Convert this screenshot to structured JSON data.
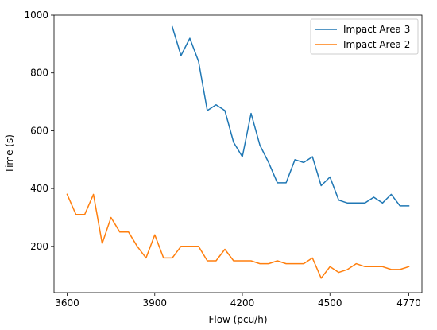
{
  "chart_data": {
    "type": "line",
    "title": "",
    "xlabel": "Flow (pcu/h)",
    "ylabel": "Time (s)",
    "xlim": [
      3555,
      4815
    ],
    "ylim": [
      40,
      1000
    ],
    "xticks": [
      3600,
      3900,
      4200,
      4500,
      4770
    ],
    "yticks": [
      200,
      400,
      600,
      800,
      1000
    ],
    "grid": false,
    "legend": "top-right",
    "series": [
      {
        "name": "Impact Area 3",
        "color": "#1f77b4",
        "x": [
          3960,
          3990,
          4020,
          4050,
          4080,
          4110,
          4140,
          4170,
          4200,
          4230,
          4260,
          4290,
          4320,
          4350,
          4380,
          4410,
          4440,
          4470,
          4500,
          4530,
          4560,
          4590,
          4620,
          4650,
          4680,
          4710,
          4740,
          4770
        ],
        "y": [
          960,
          860,
          920,
          840,
          670,
          690,
          670,
          560,
          510,
          660,
          550,
          490,
          420,
          420,
          500,
          490,
          510,
          410,
          440,
          360,
          350,
          350,
          350,
          370,
          350,
          380,
          340,
          340
        ]
      },
      {
        "name": "Impact Area 2",
        "color": "#ff7f0e",
        "x": [
          3600,
          3630,
          3660,
          3690,
          3720,
          3750,
          3780,
          3810,
          3840,
          3870,
          3900,
          3930,
          3960,
          3990,
          4020,
          4050,
          4080,
          4110,
          4140,
          4170,
          4200,
          4230,
          4260,
          4290,
          4320,
          4350,
          4380,
          4410,
          4440,
          4470,
          4500,
          4530,
          4560,
          4590,
          4620,
          4650,
          4680,
          4710,
          4740,
          4770
        ],
        "y": [
          380,
          310,
          310,
          380,
          210,
          300,
          250,
          250,
          200,
          160,
          240,
          160,
          160,
          200,
          200,
          200,
          150,
          150,
          190,
          150,
          150,
          150,
          140,
          140,
          150,
          140,
          140,
          140,
          160,
          90,
          130,
          110,
          120,
          140,
          130,
          130,
          130,
          120,
          120,
          130
        ]
      }
    ]
  }
}
